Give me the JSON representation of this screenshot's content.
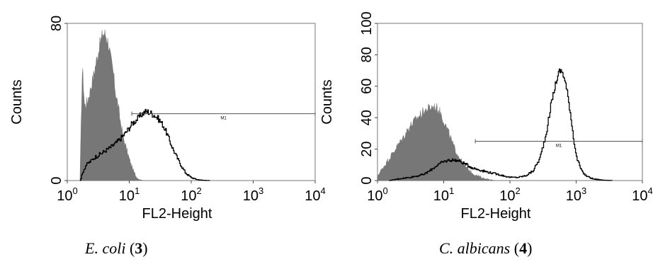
{
  "chart_data": [
    {
      "type": "area",
      "caption": {
        "species": "E. coli",
        "number": "3"
      },
      "xlabel": "FL2-Height",
      "ylabel": "Counts",
      "x_scale": "log",
      "xlim": [
        1,
        10000
      ],
      "ylim": [
        0,
        80
      ],
      "x_ticks": [
        {
          "base": "10",
          "exp": "0",
          "value": 1
        },
        {
          "base": "10",
          "exp": "1",
          "value": 10
        },
        {
          "base": "10",
          "exp": "2",
          "value": 100
        },
        {
          "base": "10",
          "exp": "3",
          "value": 1000
        },
        {
          "base": "10",
          "exp": "4",
          "value": 10000
        }
      ],
      "y_ticks": [
        "0",
        "80"
      ],
      "y_tick_values": [
        0,
        80
      ],
      "gate": {
        "label": "M1",
        "x_start": 11,
        "x_end": 10000,
        "y": 34
      },
      "series": [
        {
          "style": "filled-gray",
          "x": [
            1.6,
            1.75,
            1.9,
            2.1,
            2.3,
            2.6,
            3.0,
            3.4,
            3.8,
            4.2,
            4.6,
            5.0,
            5.5,
            6.0,
            6.6,
            7.2,
            8.0,
            9.0,
            10.0,
            11.0,
            12.0,
            13.0,
            14.0,
            15.0,
            16.0,
            17.0
          ],
          "y": [
            0,
            58,
            38,
            40,
            45,
            52,
            62,
            70,
            75,
            74,
            70,
            62,
            55,
            45,
            38,
            30,
            22,
            16,
            11,
            7,
            4,
            2,
            1,
            0.5,
            0.2,
            0
          ]
        },
        {
          "style": "black-line",
          "x": [
            1.6,
            1.8,
            2.0,
            2.4,
            2.8,
            3.2,
            3.6,
            4.0,
            5.0,
            6.0,
            7.0,
            8.0,
            9.0,
            10.0,
            11.0,
            12.0,
            14.0,
            16.0,
            18.0,
            20.0,
            23.0,
            26.0,
            30.0,
            35.0,
            40.0,
            46.0,
            52.0,
            60.0,
            70.0,
            80.0,
            90.0,
            100.0,
            115.0,
            130.0,
            160.0,
            200.0
          ],
          "y": [
            0,
            5,
            8,
            10,
            12,
            13,
            14,
            15,
            17,
            19,
            21,
            23,
            25,
            27,
            29,
            30,
            32,
            34,
            35,
            35,
            34,
            33,
            31,
            28,
            24,
            19,
            15,
            11,
            7,
            4,
            2.5,
            1.5,
            0.8,
            0.4,
            0.1,
            0
          ]
        }
      ]
    },
    {
      "type": "area",
      "caption": {
        "species": "C. albicans",
        "number": "4"
      },
      "xlabel": "FL2-Height",
      "ylabel": "Counts",
      "x_scale": "log",
      "xlim": [
        1,
        10000
      ],
      "ylim": [
        0,
        100
      ],
      "x_ticks": [
        {
          "base": "10",
          "exp": "0",
          "value": 1
        },
        {
          "base": "10",
          "exp": "1",
          "value": 10
        },
        {
          "base": "10",
          "exp": "2",
          "value": 100
        },
        {
          "base": "10",
          "exp": "3",
          "value": 1000
        },
        {
          "base": "10",
          "exp": "4",
          "value": 10000
        }
      ],
      "y_ticks": [
        "0",
        "20",
        "40",
        "60",
        "80",
        "100"
      ],
      "y_tick_values": [
        0,
        20,
        40,
        60,
        80,
        100
      ],
      "gate": {
        "label": "M1",
        "x_start": 30,
        "x_end": 10000,
        "y": 25
      },
      "series": [
        {
          "style": "filled-gray",
          "x": [
            1.0,
            1.2,
            1.5,
            2.0,
            2.5,
            3.0,
            4.0,
            5.0,
            6.0,
            7.0,
            8.0,
            9.0,
            10.0,
            12.0,
            14.0,
            17.0,
            20.0,
            25.0,
            30.0,
            40.0,
            50.0,
            60.0
          ],
          "y": [
            3,
            8,
            14,
            22,
            28,
            34,
            40,
            44,
            46,
            47,
            46,
            43,
            38,
            30,
            22,
            15,
            10,
            6,
            3.5,
            1.5,
            0.5,
            0
          ]
        },
        {
          "style": "black-line",
          "x": [
            1.5,
            2.0,
            3.0,
            4.0,
            5.0,
            6.0,
            7.0,
            8.0,
            10.0,
            12.0,
            15.0,
            18.0,
            22.0,
            27.0,
            33.0,
            40.0,
            50.0,
            65.0,
            80.0,
            100.0,
            130.0,
            170.0,
            220.0,
            280.0,
            350.0,
            420.0,
            500.0,
            560.0,
            620.0,
            700.0,
            800.0,
            900.0,
            1000.0,
            1200.0,
            1400.0,
            1800.0,
            2500.0,
            3500.0
          ],
          "y": [
            0,
            1,
            2,
            3,
            4,
            6,
            8,
            10,
            12,
            13,
            13,
            12,
            10,
            8,
            7,
            6,
            5,
            4,
            3,
            2,
            2,
            3,
            6,
            14,
            30,
            50,
            64,
            70,
            69,
            60,
            45,
            28,
            15,
            6,
            3,
            1,
            0.3,
            0
          ]
        }
      ]
    }
  ]
}
